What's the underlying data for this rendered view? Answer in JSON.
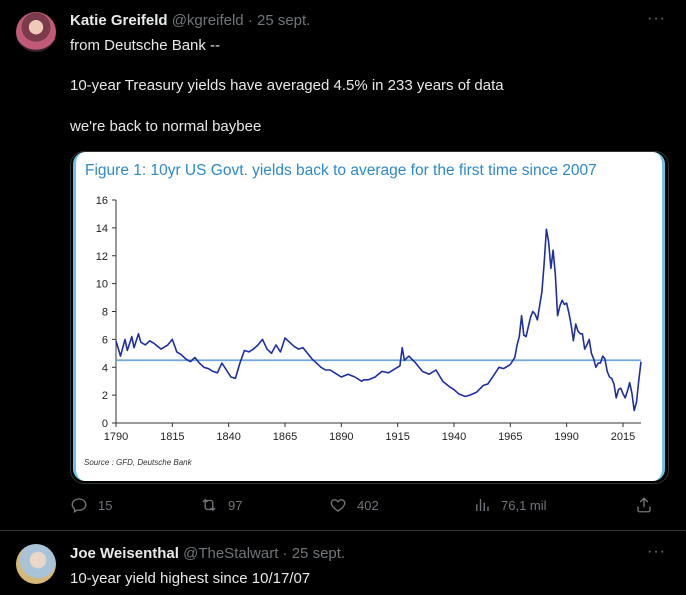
{
  "tweet1": {
    "author_name": "Katie Greifeld",
    "handle": "@kgreifeld",
    "date": "25 sept.",
    "lines": [
      "from Deutsche Bank --",
      "10-year Treasury yields have averaged 4.5% in 233 years of data",
      "we're back to normal baybee"
    ],
    "stats": {
      "replies": "15",
      "retweets": "97",
      "likes": "402",
      "views": "76,1 mil"
    }
  },
  "tweet2": {
    "author_name": "Joe Weisenthal",
    "handle": "@TheStalwart",
    "date": "25 sept.",
    "text": "10-year yield highest since 10/17/07"
  },
  "separator": "·",
  "more_icon": "···",
  "chart_data": {
    "type": "line",
    "title": "Figure 1: 10yr US Govt. yields back to average for the first time since 2007",
    "source": "Source : GFD, Deutsche Bank",
    "xlim": [
      1790,
      2023
    ],
    "ylim": [
      0,
      16
    ],
    "xticks": [
      1790,
      1815,
      1840,
      1865,
      1890,
      1915,
      1940,
      1965,
      1990,
      2015
    ],
    "yticks": [
      0,
      2,
      4,
      6,
      8,
      10,
      12,
      14,
      16
    ],
    "average_line": 4.5,
    "colors": {
      "series": "#1f2fa0",
      "average": "#6fa7dc",
      "title": "#2e89c8"
    },
    "series": [
      {
        "x": [
          1790,
          1792,
          1794,
          1795,
          1797,
          1798,
          1800,
          1801,
          1803,
          1805,
          1807,
          1810,
          1813,
          1815,
          1817,
          1819,
          1821,
          1823,
          1825,
          1827,
          1829,
          1831,
          1833,
          1835,
          1837,
          1839,
          1841,
          1843,
          1845,
          1847,
          1849,
          1851,
          1853,
          1855,
          1857,
          1859,
          1861,
          1863,
          1865,
          1867,
          1869,
          1871,
          1873,
          1875,
          1877,
          1879,
          1881,
          1883,
          1885,
          1887,
          1890,
          1893,
          1896,
          1899,
          1900,
          1902,
          1905,
          1908,
          1911,
          1914,
          1916,
          1917,
          1918,
          1920,
          1923,
          1926,
          1929,
          1932,
          1935,
          1938,
          1940,
          1942,
          1945,
          1947,
          1950,
          1953,
          1955,
          1958,
          1960,
          1962,
          1965,
          1967,
          1968,
          1969,
          1970,
          1971,
          1972,
          1973,
          1974,
          1975,
          1976,
          1977,
          1978,
          1979,
          1980,
          1981,
          1982,
          1983,
          1984,
          1985,
          1986,
          1987,
          1988,
          1989,
          1990,
          1991,
          1992,
          1993,
          1994,
          1995,
          1996,
          1997,
          1998,
          1999,
          2000,
          2001,
          2002,
          2003,
          2004,
          2005,
          2006,
          2007,
          2008,
          2009,
          2010,
          2011,
          2012,
          2013,
          2014,
          2015,
          2016,
          2017,
          2018,
          2019,
          2020,
          2021,
          2022,
          2023
        ],
        "y": [
          5.9,
          4.8,
          6.0,
          5.2,
          6.2,
          5.4,
          6.4,
          5.8,
          5.6,
          5.9,
          5.7,
          5.3,
          5.6,
          6.0,
          5.1,
          4.9,
          4.6,
          4.4,
          4.7,
          4.3,
          4.0,
          3.9,
          3.7,
          3.6,
          4.3,
          3.8,
          3.3,
          3.2,
          4.3,
          5.2,
          5.1,
          5.3,
          5.6,
          6.0,
          5.3,
          5.0,
          5.6,
          5.1,
          6.1,
          5.8,
          5.5,
          5.3,
          5.4,
          5.0,
          4.6,
          4.3,
          4.0,
          3.8,
          3.8,
          3.6,
          3.3,
          3.5,
          3.3,
          3.0,
          3.1,
          3.1,
          3.3,
          3.7,
          3.6,
          3.9,
          4.1,
          5.4,
          4.5,
          4.8,
          4.3,
          3.7,
          3.5,
          3.8,
          3.0,
          2.6,
          2.4,
          2.1,
          1.9,
          2.0,
          2.2,
          2.7,
          2.8,
          3.5,
          4.0,
          3.9,
          4.2,
          4.7,
          5.6,
          6.2,
          7.7,
          6.3,
          6.2,
          6.9,
          7.6,
          8.0,
          7.8,
          7.4,
          8.4,
          9.4,
          11.4,
          13.9,
          13.0,
          11.1,
          12.4,
          10.6,
          7.7,
          8.4,
          8.8,
          8.5,
          8.6,
          7.9,
          7.0,
          5.9,
          7.1,
          6.6,
          6.4,
          6.4,
          5.3,
          5.6,
          6.0,
          5.0,
          4.6,
          4.0,
          4.3,
          4.3,
          4.8,
          4.6,
          3.7,
          3.3,
          3.2,
          2.8,
          1.8,
          2.4,
          2.5,
          2.1,
          1.8,
          2.3,
          2.9,
          2.1,
          0.9,
          1.5,
          3.0,
          4.4
        ]
      }
    ]
  }
}
